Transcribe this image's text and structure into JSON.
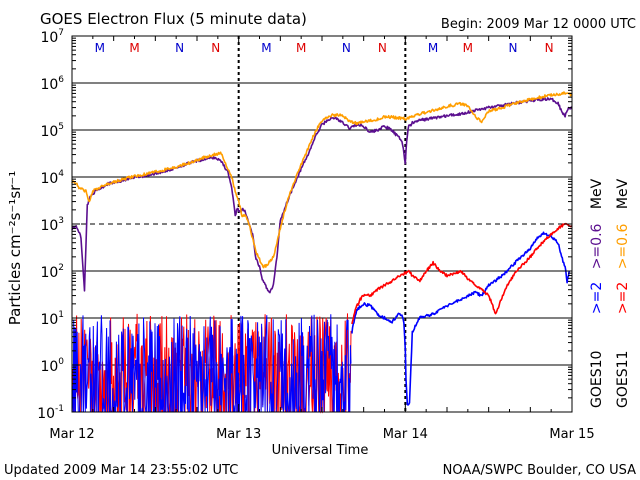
{
  "chart_data": {
    "type": "line",
    "title": "GOES Electron Flux (5 minute data)",
    "begin_label": "Begin: 2009 Mar 12 0000 UTC",
    "xlabel": "Universal Time",
    "ylabel": "Particles cm⁻²s⁻¹sr⁻¹",
    "yscale": "log",
    "ylim": [
      0.1,
      10000000
    ],
    "xlim": [
      0,
      72
    ],
    "x_unit": "hours since 2009 Mar 12 0000 UTC",
    "x_ticks": [
      {
        "x": 0,
        "label": "Mar 12"
      },
      {
        "x": 24,
        "label": "Mar 13"
      },
      {
        "x": 48,
        "label": "Mar 14"
      },
      {
        "x": 72,
        "label": "Mar 15"
      }
    ],
    "y_ticks": [
      {
        "v": 0.1,
        "base": "10",
        "exp": "-1"
      },
      {
        "v": 1,
        "base": "10",
        "exp": "0"
      },
      {
        "v": 10,
        "base": "10",
        "exp": "1"
      },
      {
        "v": 100,
        "base": "10",
        "exp": "2"
      },
      {
        "v": 1000,
        "base": "10",
        "exp": "3"
      },
      {
        "v": 10000,
        "base": "10",
        "exp": "4"
      },
      {
        "v": 100000,
        "base": "10",
        "exp": "5"
      },
      {
        "v": 1000000,
        "base": "10",
        "exp": "6"
      },
      {
        "v": 10000000,
        "base": "10",
        "exp": "7"
      }
    ],
    "threshold_line": 1000,
    "day_markers": [
      24,
      48
    ],
    "mn_markers": [
      {
        "x": 4,
        "label": "M",
        "color": "#0000cc"
      },
      {
        "x": 9,
        "label": "M",
        "color": "#dd0000"
      },
      {
        "x": 15.5,
        "label": "N",
        "color": "#0000cc"
      },
      {
        "x": 20.7,
        "label": "N",
        "color": "#dd0000"
      },
      {
        "x": 28,
        "label": "M",
        "color": "#0000cc"
      },
      {
        "x": 33,
        "label": "M",
        "color": "#dd0000"
      },
      {
        "x": 39.5,
        "label": "N",
        "color": "#0000cc"
      },
      {
        "x": 44.7,
        "label": "N",
        "color": "#dd0000"
      },
      {
        "x": 52,
        "label": "M",
        "color": "#0000cc"
      },
      {
        "x": 57,
        "label": "M",
        "color": "#dd0000"
      },
      {
        "x": 63.5,
        "label": "N",
        "color": "#0000cc"
      },
      {
        "x": 68.7,
        "label": "N",
        "color": "#dd0000"
      }
    ],
    "legend": {
      "goes10": "GOES10",
      "goes11": "GOES11",
      "e2_goes10": ">=2",
      "e06_goes10": ">=0.6",
      "e2_goes11": ">=2",
      "e06_goes11": ">=0.6",
      "unit": "MeV"
    },
    "series": [
      {
        "name": "GOES10 >=0.6 MeV",
        "color": "#5b0f8f",
        "x": [
          0,
          0.5,
          1,
          1.3,
          1.8,
          2.2,
          2.5,
          3,
          5,
          8,
          11,
          14,
          17,
          19,
          20.5,
          21.5,
          22.5,
          23,
          23.5,
          23.8,
          24.2,
          24.6,
          25,
          25.5,
          26,
          26.5,
          27,
          27.5,
          28,
          28.5,
          29,
          29.5,
          30,
          31,
          32,
          33,
          34,
          35,
          36,
          37,
          38,
          39,
          40,
          41,
          42,
          43,
          44,
          45,
          46,
          47,
          47.5,
          48,
          48.2,
          48.5,
          48.8,
          49,
          50,
          52,
          54,
          56,
          58,
          60,
          62,
          64,
          66,
          68,
          69,
          70,
          70.5,
          71,
          71.5,
          72
        ],
        "values": [
          800,
          900,
          700,
          500,
          40,
          2500,
          3500,
          4500,
          7000,
          9000,
          11000,
          14000,
          20000,
          24000,
          26000,
          22000,
          12000,
          6000,
          1500,
          2200,
          1800,
          2000,
          1800,
          1000,
          600,
          180,
          120,
          60,
          45,
          35,
          50,
          200,
          1200,
          3000,
          7000,
          15000,
          30000,
          70000,
          130000,
          170000,
          180000,
          140000,
          110000,
          130000,
          120000,
          90000,
          100000,
          120000,
          100000,
          70000,
          60000,
          20000,
          60000,
          130000,
          130000,
          140000,
          160000,
          180000,
          200000,
          220000,
          260000,
          300000,
          330000,
          380000,
          420000,
          460000,
          450000,
          380000,
          250000,
          200000,
          300000,
          300000
        ]
      },
      {
        "name": "GOES11 >=0.6 MeV",
        "color": "#ff9e00",
        "x": [
          0,
          0.5,
          1,
          2,
          2.5,
          3,
          5,
          8,
          11,
          14,
          17,
          19,
          20.5,
          21.5,
          22,
          23,
          23.5,
          24,
          24.5,
          25,
          25.5,
          26,
          26.5,
          27,
          27.5,
          28,
          29,
          30,
          31,
          32,
          33,
          34,
          35,
          36,
          37,
          38,
          39,
          40,
          41,
          42,
          43,
          44,
          45,
          46,
          47,
          48,
          48.5,
          49,
          50,
          52,
          54,
          56,
          57,
          58,
          59,
          60,
          62,
          64,
          66,
          68,
          70,
          71,
          72
        ],
        "values": [
          8000,
          7500,
          6000,
          5000,
          3000,
          5000,
          7000,
          9500,
          12000,
          15000,
          20000,
          26000,
          30000,
          32000,
          20000,
          10000,
          5000,
          3000,
          1500,
          1500,
          1000,
          500,
          250,
          180,
          120,
          130,
          200,
          800,
          3000,
          8000,
          18000,
          40000,
          90000,
          160000,
          200000,
          210000,
          200000,
          150000,
          140000,
          150000,
          160000,
          170000,
          190000,
          190000,
          180000,
          170000,
          180000,
          190000,
          220000,
          260000,
          320000,
          360000,
          320000,
          200000,
          150000,
          250000,
          300000,
          380000,
          450000,
          520000,
          580000,
          600000,
          560000
        ]
      },
      {
        "name": "GOES10 >=2 MeV",
        "color": "#0000ff",
        "x": [
          40.3,
          40.7,
          41,
          42,
          43,
          44,
          45,
          46,
          47,
          47.5,
          47.8,
          48,
          48.1,
          48.3,
          48.6,
          49,
          50,
          52,
          54,
          56,
          58,
          59,
          60,
          62,
          64,
          66,
          67,
          68,
          69,
          70,
          70.5,
          71,
          71.3,
          71.6
        ],
        "values": [
          5,
          10,
          15,
          20,
          18,
          12,
          10,
          8,
          12,
          12,
          8,
          2,
          0.5,
          0.15,
          0.15,
          5,
          10,
          12,
          18,
          25,
          35,
          30,
          50,
          80,
          160,
          300,
          500,
          650,
          550,
          400,
          200,
          120,
          60,
          100
        ]
      },
      {
        "name": "GOES11 >=2 MeV",
        "color": "#ff0000",
        "x": [
          40.3,
          40.8,
          41.5,
          42,
          43,
          44,
          45,
          46,
          47,
          48,
          48.5,
          49,
          50,
          51,
          52,
          53,
          54,
          55,
          56,
          57,
          58,
          59,
          60,
          60.5,
          61,
          62,
          63,
          64,
          65,
          66,
          67,
          68,
          69,
          70,
          70.5,
          71,
          71.5,
          72
        ],
        "values": [
          8,
          15,
          25,
          30,
          30,
          40,
          50,
          60,
          80,
          90,
          100,
          80,
          60,
          100,
          150,
          100,
          80,
          90,
          100,
          70,
          50,
          40,
          30,
          20,
          12,
          30,
          60,
          100,
          140,
          200,
          300,
          450,
          600,
          800,
          900,
          1000,
          950,
          900
        ]
      }
    ],
    "noise_series": [
      {
        "name": "GOES11 >=2 MeV (background)",
        "color": "#ff0000",
        "x_start": 0,
        "x_end": 40.2,
        "ymin": 0.1,
        "ymax": 13
      },
      {
        "name": "GOES10 >=2 MeV (background)",
        "color": "#0000ff",
        "x_start": 0,
        "x_end": 40.2,
        "ymin": 0.1,
        "ymax": 12
      }
    ]
  },
  "footer": {
    "updated": "Updated 2009 Mar 14 23:55:02 UTC",
    "source": "NOAA/SWPC Boulder, CO USA"
  }
}
